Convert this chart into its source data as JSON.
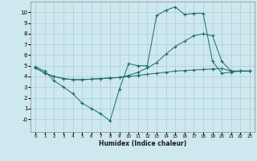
{
  "xlabel": "Humidex (Indice chaleur)",
  "bg_color": "#cde8ee",
  "grid_color": "#aacdd6",
  "line_color": "#1a6b6b",
  "xlim": [
    -0.5,
    23.5
  ],
  "ylim": [
    -1.2,
    11.0
  ],
  "xticks": [
    0,
    1,
    2,
    3,
    4,
    5,
    6,
    7,
    8,
    9,
    10,
    11,
    12,
    13,
    14,
    15,
    16,
    17,
    18,
    19,
    20,
    21,
    22,
    23
  ],
  "yticks": [
    0,
    1,
    2,
    3,
    4,
    5,
    6,
    7,
    8,
    9,
    10
  ],
  "ytick_labels": [
    "-0",
    "1",
    "2",
    "3",
    "4",
    "5",
    "6",
    "7",
    "8",
    "9",
    "10"
  ],
  "line1_x": [
    0,
    1,
    2,
    3,
    4,
    5,
    6,
    7,
    8,
    9,
    10,
    11,
    12,
    13,
    14,
    15,
    16,
    17,
    18,
    19,
    20,
    21,
    22,
    23
  ],
  "line1_y": [
    4.9,
    4.5,
    3.6,
    3.0,
    2.4,
    1.5,
    1.0,
    0.5,
    -0.15,
    2.8,
    5.2,
    5.0,
    5.0,
    9.7,
    10.2,
    10.5,
    9.8,
    9.9,
    9.9,
    5.4,
    4.3,
    4.4,
    4.5,
    4.5
  ],
  "line2_x": [
    0,
    1,
    2,
    3,
    4,
    5,
    6,
    7,
    8,
    9,
    10,
    11,
    12,
    13,
    14,
    15,
    16,
    17,
    18,
    19,
    20,
    21,
    22,
    23
  ],
  "line2_y": [
    4.8,
    4.3,
    4.0,
    3.8,
    3.7,
    3.7,
    3.75,
    3.8,
    3.85,
    3.9,
    4.0,
    4.1,
    4.2,
    4.3,
    4.4,
    4.5,
    4.55,
    4.6,
    4.65,
    4.7,
    4.75,
    4.5,
    4.5,
    4.5
  ],
  "line3_x": [
    0,
    1,
    2,
    3,
    4,
    5,
    6,
    7,
    8,
    9,
    10,
    11,
    12,
    13,
    14,
    15,
    16,
    17,
    18,
    19,
    20,
    21,
    22,
    23
  ],
  "line3_y": [
    4.8,
    4.3,
    4.0,
    3.8,
    3.7,
    3.7,
    3.75,
    3.8,
    3.85,
    3.9,
    4.1,
    4.4,
    4.8,
    5.3,
    6.1,
    6.8,
    7.3,
    7.8,
    8.0,
    7.8,
    5.4,
    4.5,
    4.5,
    4.5
  ]
}
